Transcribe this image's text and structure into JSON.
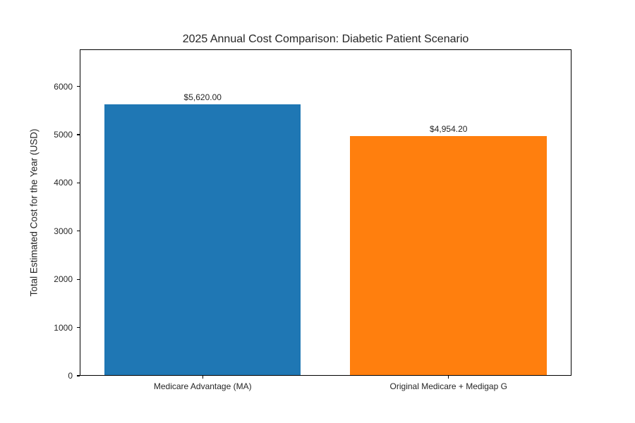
{
  "chart_data": {
    "type": "bar",
    "title": "2025 Annual Cost Comparison: Diabetic Patient Scenario",
    "xlabel": "",
    "ylabel": "Total Estimated Cost for the Year (USD)",
    "categories": [
      "Medicare Advantage (MA)",
      "Original Medicare + Medigap G"
    ],
    "values": [
      5620.0,
      4954.2
    ],
    "value_labels": [
      "$5,620.00",
      "$4,954.20"
    ],
    "bar_colors": [
      "#1f77b4",
      "#ff7f0e"
    ],
    "yticks": [
      0,
      1000,
      2000,
      3000,
      4000,
      5000,
      6000
    ],
    "ylim": [
      0,
      6770
    ],
    "grid": false,
    "legend": null,
    "background_color": "#ffffff",
    "axis_color": "#000000",
    "text_color": "#262626"
  }
}
